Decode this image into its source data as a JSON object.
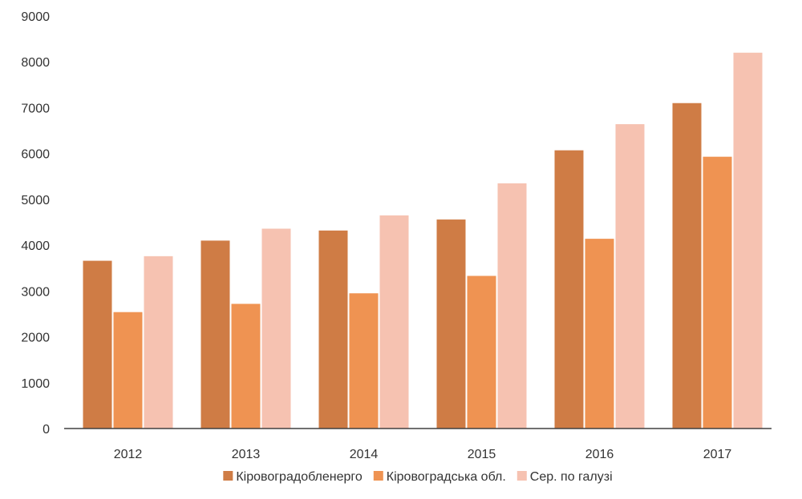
{
  "chart_data": {
    "type": "bar",
    "categories": [
      "2012",
      "2013",
      "2014",
      "2015",
      "2016",
      "2017"
    ],
    "series": [
      {
        "name": "Кіровоградобленерго",
        "color": "#CF7C45",
        "values": [
          3660,
          4100,
          4320,
          4560,
          6070,
          7100
        ]
      },
      {
        "name": "Кіровоградська обл.",
        "color": "#EF9352",
        "values": [
          2540,
          2720,
          2950,
          3330,
          4140,
          5930
        ]
      },
      {
        "name": "Сер. по галузі",
        "color": "#F6C2B1",
        "values": [
          3760,
          4360,
          4650,
          5350,
          6640,
          8200
        ]
      }
    ],
    "y_ticks": [
      "0",
      "1000",
      "2000",
      "3000",
      "4000",
      "5000",
      "6000",
      "7000",
      "8000",
      "9000"
    ],
    "ylim": [
      0,
      9000
    ],
    "grid": false,
    "legend_position": "bottom"
  }
}
